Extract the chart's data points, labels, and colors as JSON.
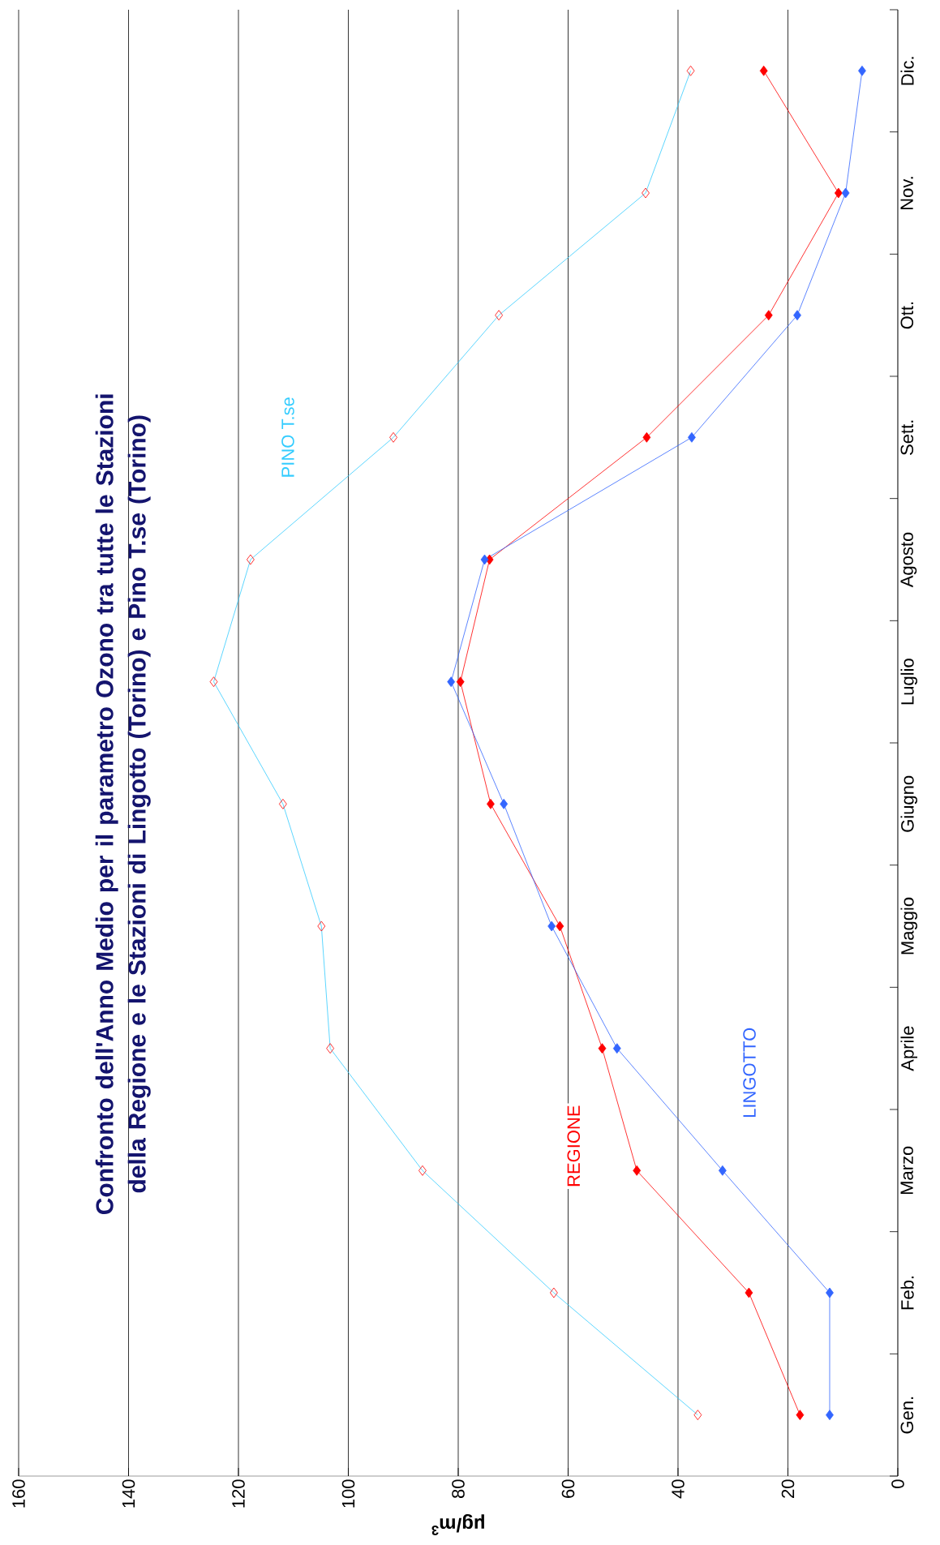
{
  "chart_data": {
    "type": "line",
    "orientation": "horizontal",
    "title": "Confronto dell'Anno Medio per il parametro Ozono tra tutte le Stazioni della Regione e le Stazioni di Lingotto (Torino) e Pino T.se (Torino)",
    "xlabel": "μg/m$^{3}$",
    "categories": [
      "Dic.",
      "Nov.",
      "Ott.",
      "Sett.",
      "Agosto",
      "Luglio",
      "Giugno",
      "Maggio",
      "Aprile",
      "Marzo",
      "Feb.",
      "Gen."
    ],
    "series": [
      {
        "name": "PINO T.se",
        "color": "#33ccff",
        "values": [
          37.7,
          45.9,
          72.6,
          91.8,
          117.8,
          124.5,
          111.9,
          104.9,
          103.3,
          86.5,
          62.6,
          36.4
        ]
      },
      {
        "name": "REGIONE",
        "color": "#ff0000",
        "values": [
          24.4,
          10.8,
          23.5,
          45.7,
          74.3,
          79.6,
          74.1,
          61.5,
          53.8,
          47.5,
          27.1,
          17.8
        ]
      },
      {
        "name": "LINGOTTO",
        "color": "#3366ff",
        "values": [
          6.5,
          9.5,
          18.3,
          37.5,
          75.2,
          81.3,
          71.7,
          63.0,
          51.1,
          31.9,
          12.4,
          12.4
        ]
      }
    ],
    "xlim": [
      160,
      0
    ],
    "xticks": [
      0,
      20,
      40,
      60,
      80,
      100,
      120,
      140,
      160
    ],
    "grid": "x",
    "marker": "diamond",
    "line_style": "solid"
  }
}
